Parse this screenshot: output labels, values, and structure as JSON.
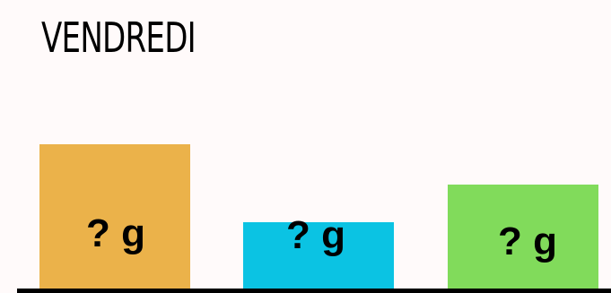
{
  "title": "VENDREDI",
  "blocks": [
    {
      "label": "? g",
      "color": "#ebb24a"
    },
    {
      "label": "? g",
      "color": "#0bc3e3"
    },
    {
      "label": "? g",
      "color": "#81db5b"
    }
  ]
}
